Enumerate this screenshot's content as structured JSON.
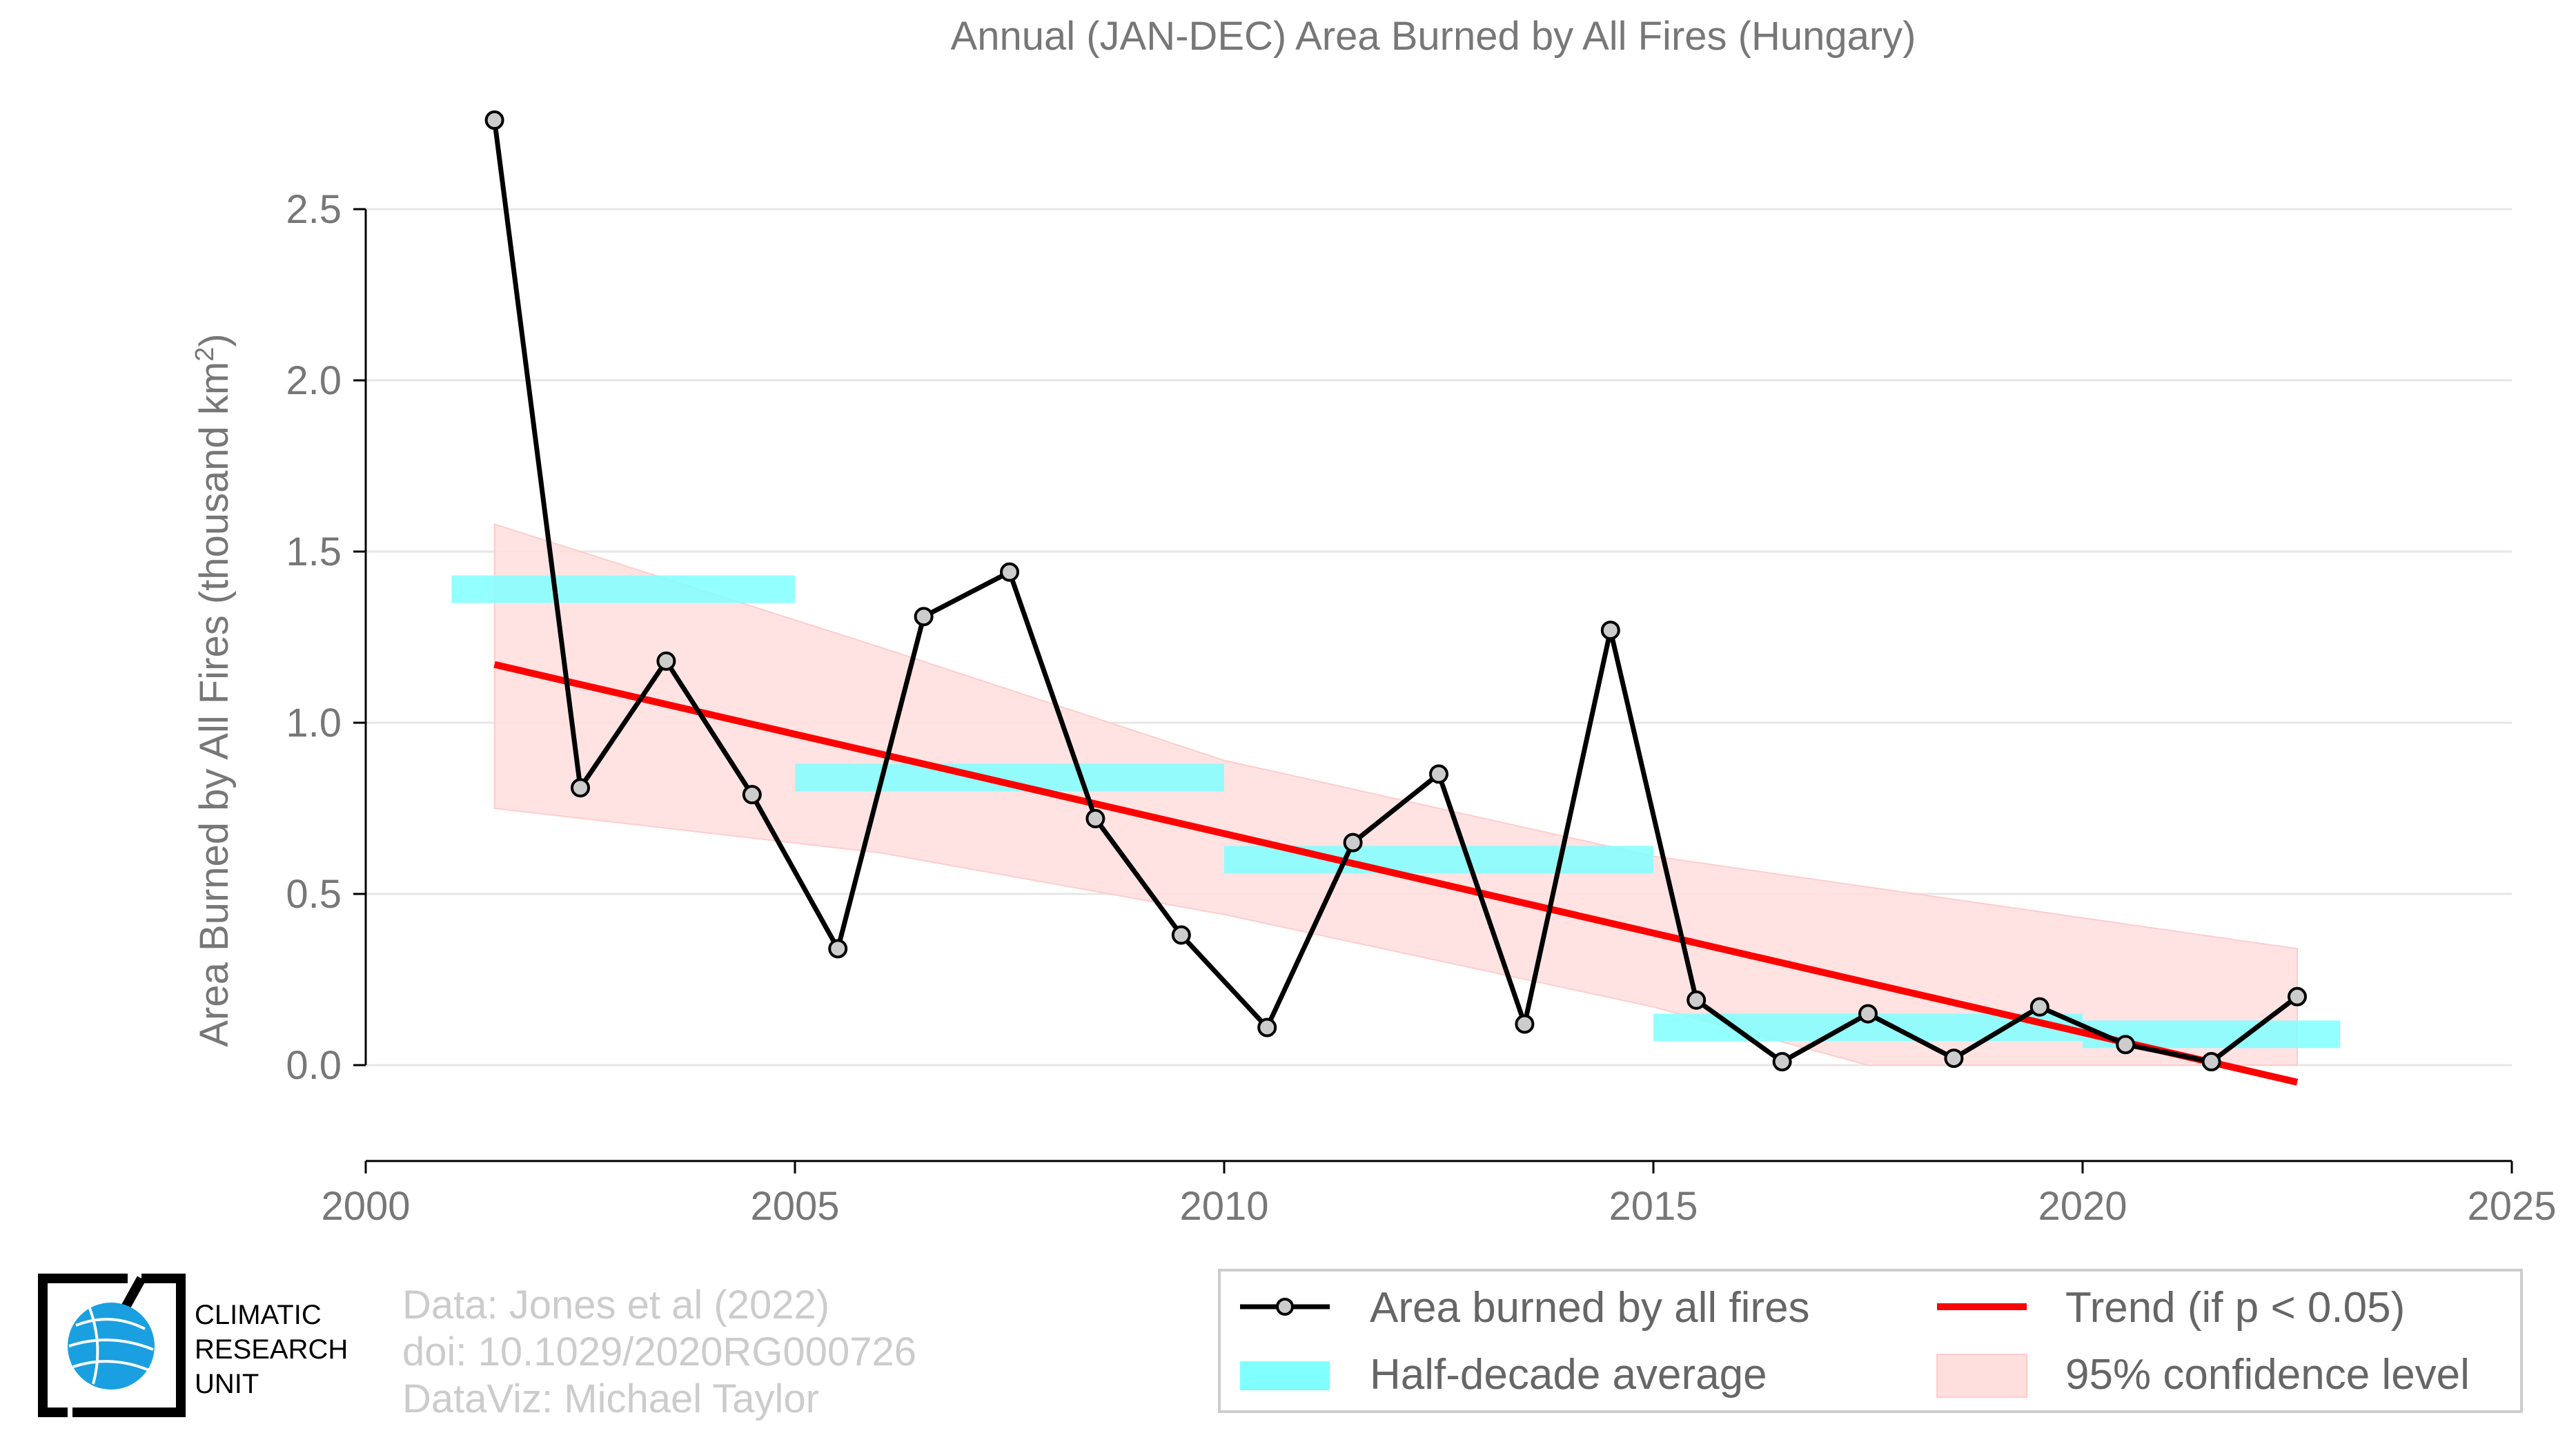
{
  "chart_data": {
    "type": "line",
    "title": "Annual (JAN-DEC) Area Burned by All Fires (Hungary)",
    "ylabel": "Area Burned by All Fires (thousand km",
    "ylabel_superscript": "2",
    "ylabel_suffix": ")",
    "xlabel": "",
    "xlim": [
      2000,
      2025
    ],
    "ylim": [
      -0.28,
      3.0
    ],
    "x_ticks": [
      2000,
      2005,
      2010,
      2015,
      2020,
      2025
    ],
    "y_ticks": [
      0.0,
      0.5,
      1.0,
      1.5,
      2.0,
      2.5
    ],
    "y_tick_labels": [
      "0.0",
      "0.5",
      "1.0",
      "1.5",
      "2.0",
      "2.5"
    ],
    "grid": true,
    "series": [
      {
        "name": "Area burned by all fires",
        "color": "#000000",
        "marker_fill": "#cccccc",
        "x": [
          2001.5,
          2002.5,
          2003.5,
          2004.5,
          2005.5,
          2006.5,
          2007.5,
          2008.5,
          2009.5,
          2010.5,
          2011.5,
          2012.5,
          2013.5,
          2014.5,
          2015.5,
          2016.5,
          2017.5,
          2018.5,
          2019.5,
          2020.5,
          2021.5,
          2022.5
        ],
        "values": [
          2.76,
          0.81,
          1.18,
          0.79,
          0.34,
          1.31,
          1.44,
          0.72,
          0.38,
          0.11,
          0.65,
          0.85,
          0.12,
          1.27,
          0.19,
          0.01,
          0.15,
          0.02,
          0.17,
          0.06,
          0.01,
          0.2
        ]
      },
      {
        "name": "Half-decade average",
        "color": "#80ffff",
        "segments": [
          {
            "x0": 2001.0,
            "x1": 2005.0,
            "value": 1.39
          },
          {
            "x0": 2005.0,
            "x1": 2010.0,
            "value": 0.84
          },
          {
            "x0": 2010.0,
            "x1": 2015.0,
            "value": 0.6
          },
          {
            "x0": 2015.0,
            "x1": 2020.0,
            "value": 0.11
          },
          {
            "x0": 2020.0,
            "x1": 2023.0,
            "value": 0.09
          }
        ]
      },
      {
        "name": "Trend (if p < 0.05)",
        "color": "#ff0000",
        "x": [
          2001.5,
          2022.5
        ],
        "values": [
          1.17,
          -0.05
        ]
      },
      {
        "name": "95% confidence level",
        "color": "#ffcccc",
        "x": [
          2001.5,
          2006.0,
          2010.0,
          2015.0,
          2017.5,
          2020.0,
          2022.5
        ],
        "upper": [
          1.58,
          1.22,
          0.89,
          0.61,
          0.52,
          0.43,
          0.34
        ],
        "lower": [
          0.75,
          0.62,
          0.44,
          0.17,
          0.0,
          0.0,
          0.0
        ]
      }
    ],
    "legend_position": "bottom-right"
  },
  "legend": {
    "items": [
      {
        "label": "Area burned by all fires"
      },
      {
        "label": "Trend (if p < 0.05)"
      },
      {
        "label": "Half-decade average"
      },
      {
        "label": "95% confidence level"
      }
    ]
  },
  "credits": {
    "line1": "Data: Jones et al (2022)",
    "line2": "doi: 10.1029/2020RG000726",
    "line3": "DataViz: Michael Taylor"
  },
  "logo": {
    "line1": "CLIMATIC",
    "line2": "RESEARCH",
    "line3": "UNIT",
    "globe_color": "#1aa0e0"
  }
}
